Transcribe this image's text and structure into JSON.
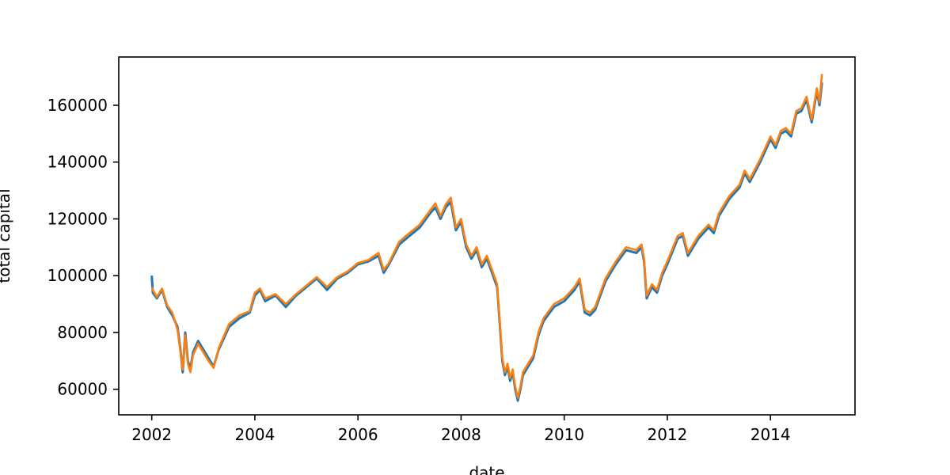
{
  "chart_data": {
    "type": "line",
    "title": "",
    "xlabel": "date",
    "ylabel": "total capital",
    "xlim": [
      2001.36,
      2015.64
    ],
    "ylim": [
      51000,
      177000
    ],
    "x_ticks": [
      2002,
      2004,
      2006,
      2008,
      2010,
      2012,
      2014
    ],
    "x_tick_labels": [
      "2002",
      "2004",
      "2006",
      "2008",
      "2010",
      "2012",
      "2014"
    ],
    "y_ticks": [
      60000,
      80000,
      100000,
      120000,
      140000,
      160000
    ],
    "y_tick_labels": [
      "60000",
      "80000",
      "100000",
      "120000",
      "140000",
      "160000"
    ],
    "grid": false,
    "series": [
      {
        "color": "#1f77b4",
        "x": [
          2002.0,
          2002.02,
          2002.1,
          2002.2,
          2002.3,
          2002.4,
          2002.5,
          2002.55,
          2002.6,
          2002.65,
          2002.7,
          2002.75,
          2002.8,
          2002.9,
          2003.0,
          2003.1,
          2003.2,
          2003.3,
          2003.5,
          2003.7,
          2003.9,
          2004.0,
          2004.1,
          2004.2,
          2004.4,
          2004.6,
          2004.8,
          2005.0,
          2005.2,
          2005.4,
          2005.6,
          2005.8,
          2006.0,
          2006.2,
          2006.4,
          2006.5,
          2006.6,
          2006.8,
          2007.0,
          2007.2,
          2007.4,
          2007.5,
          2007.6,
          2007.7,
          2007.8,
          2007.9,
          2008.0,
          2008.1,
          2008.2,
          2008.3,
          2008.4,
          2008.5,
          2008.6,
          2008.7,
          2008.75,
          2008.8,
          2008.85,
          2008.9,
          2008.95,
          2009.0,
          2009.05,
          2009.1,
          2009.15,
          2009.2,
          2009.3,
          2009.4,
          2009.5,
          2009.6,
          2009.8,
          2010.0,
          2010.2,
          2010.3,
          2010.4,
          2010.5,
          2010.6,
          2010.7,
          2010.8,
          2011.0,
          2011.2,
          2011.4,
          2011.5,
          2011.55,
          2011.6,
          2011.7,
          2011.8,
          2011.9,
          2012.0,
          2012.2,
          2012.3,
          2012.4,
          2012.5,
          2012.6,
          2012.8,
          2012.9,
          2013.0,
          2013.2,
          2013.4,
          2013.5,
          2013.6,
          2013.8,
          2014.0,
          2014.1,
          2014.2,
          2014.3,
          2014.4,
          2014.5,
          2014.6,
          2014.7,
          2014.75,
          2014.8,
          2014.9,
          2014.95,
          2015.0
        ],
        "y": [
          100000,
          94000,
          92000,
          95000,
          89000,
          86000,
          82000,
          75000,
          66000,
          80000,
          70000,
          67000,
          73000,
          77000,
          74000,
          71000,
          68000,
          74000,
          82000,
          85000,
          87000,
          93000,
          95000,
          91000,
          93000,
          89000,
          93000,
          96000,
          99000,
          95000,
          99000,
          101000,
          104000,
          105000,
          107000,
          101000,
          104000,
          111000,
          114000,
          117000,
          122000,
          124000,
          120000,
          124000,
          126000,
          116000,
          119000,
          110000,
          106000,
          109000,
          103000,
          106000,
          101000,
          96000,
          83000,
          70000,
          65000,
          68000,
          63000,
          66000,
          60000,
          56000,
          60000,
          65000,
          68000,
          71000,
          79000,
          84000,
          89000,
          91000,
          95000,
          98000,
          87000,
          86000,
          88000,
          93000,
          98000,
          104000,
          109000,
          108000,
          110000,
          105000,
          92000,
          96000,
          94000,
          100000,
          104000,
          113000,
          114000,
          107000,
          110000,
          113000,
          117000,
          115000,
          121000,
          127000,
          131000,
          136000,
          133000,
          140000,
          148000,
          145000,
          150000,
          151000,
          149000,
          157000,
          158000,
          162000,
          158000,
          154000,
          165000,
          160000,
          168000
        ]
      },
      {
        "color": "#ff7f0e",
        "x": [
          2002.0,
          2002.02,
          2002.1,
          2002.2,
          2002.3,
          2002.4,
          2002.5,
          2002.55,
          2002.6,
          2002.65,
          2002.7,
          2002.75,
          2002.8,
          2002.9,
          2003.0,
          2003.1,
          2003.2,
          2003.3,
          2003.5,
          2003.7,
          2003.9,
          2004.0,
          2004.1,
          2004.2,
          2004.4,
          2004.6,
          2004.8,
          2005.0,
          2005.2,
          2005.4,
          2005.6,
          2005.8,
          2006.0,
          2006.2,
          2006.4,
          2006.5,
          2006.6,
          2006.8,
          2007.0,
          2007.2,
          2007.4,
          2007.5,
          2007.6,
          2007.7,
          2007.8,
          2007.9,
          2008.0,
          2008.1,
          2008.2,
          2008.3,
          2008.4,
          2008.5,
          2008.6,
          2008.7,
          2008.75,
          2008.8,
          2008.85,
          2008.9,
          2008.95,
          2009.0,
          2009.05,
          2009.1,
          2009.15,
          2009.2,
          2009.3,
          2009.4,
          2009.5,
          2009.6,
          2009.8,
          2010.0,
          2010.2,
          2010.3,
          2010.4,
          2010.5,
          2010.6,
          2010.7,
          2010.8,
          2011.0,
          2011.2,
          2011.4,
          2011.5,
          2011.55,
          2011.6,
          2011.7,
          2011.8,
          2011.9,
          2012.0,
          2012.2,
          2012.3,
          2012.4,
          2012.5,
          2012.6,
          2012.8,
          2012.9,
          2013.0,
          2013.2,
          2013.4,
          2013.5,
          2013.6,
          2013.8,
          2014.0,
          2014.1,
          2014.2,
          2014.3,
          2014.4,
          2014.5,
          2014.6,
          2014.7,
          2014.75,
          2014.8,
          2014.9,
          2014.95,
          2015.0
        ],
        "y": [
          96000,
          95000,
          92500,
          95500,
          89500,
          87000,
          81000,
          74000,
          67000,
          79000,
          69000,
          66000,
          72000,
          76000,
          73000,
          70000,
          67500,
          74500,
          83000,
          86000,
          87500,
          94000,
          95500,
          92000,
          93500,
          90000,
          93500,
          96500,
          99500,
          96000,
          99500,
          101500,
          104500,
          105500,
          108000,
          102000,
          104500,
          112000,
          115000,
          118000,
          123000,
          125500,
          121000,
          125000,
          127500,
          117000,
          120000,
          111000,
          107000,
          110000,
          104000,
          107000,
          102000,
          97000,
          84000,
          71000,
          66000,
          69000,
          64000,
          67000,
          61000,
          57000,
          61000,
          66000,
          69000,
          72000,
          80000,
          85000,
          90000,
          92000,
          96000,
          99000,
          88000,
          87000,
          89000,
          94000,
          99000,
          105000,
          110000,
          109000,
          111000,
          106000,
          93000,
          97000,
          95000,
          101000,
          105000,
          114000,
          115000,
          108000,
          111000,
          114000,
          118000,
          116000,
          122000,
          128000,
          132000,
          137000,
          134000,
          141000,
          149000,
          146000,
          151000,
          152000,
          150000,
          158000,
          159000,
          163000,
          159000,
          155000,
          166000,
          161000,
          171000
        ]
      }
    ]
  }
}
